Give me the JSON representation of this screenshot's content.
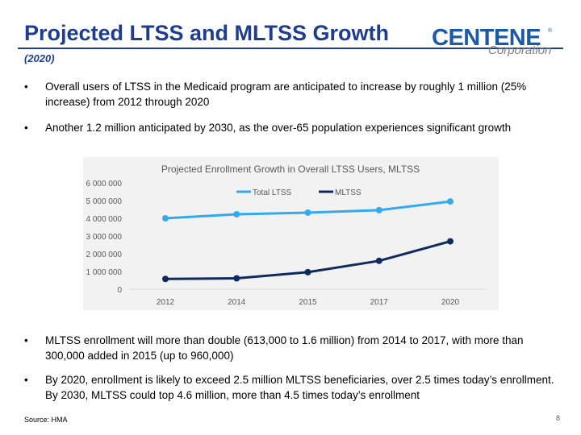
{
  "header": {
    "title": "Projected LTSS and MLTSS Growth",
    "subtitle": "(2020)",
    "logo_main": "CENTENE",
    "logo_reg": "®",
    "logo_sub": "Corporation"
  },
  "bullets_top": [
    "Overall users of LTSS in the Medicaid program are anticipated to increase by roughly 1 million (25% increase) from 2012 through 2020",
    "Another 1.2 million anticipated by 2030, as the over-65 population experiences significant growth"
  ],
  "bullets_bottom": [
    "MLTSS enrollment will more than double (613,000 to 1.6 million) from 2014 to 2017, with more than 300,000 added in 2015 (up to 960,000)",
    "By 2020, enrollment is likely to exceed 2.5 million MLTSS beneficiaries, over 2.5 times today’s enrollment. By 2030, MLTSS could top 4.6 million, more than 4.5 times today’s enrollment"
  ],
  "bullet_symbol": "•",
  "footer": {
    "source": "Source: HMA",
    "page_number": "8"
  },
  "chart_data": {
    "type": "line",
    "title": "Projected Enrollment Growth in Overall LTSS Users, MLTSS",
    "categories": [
      "2012",
      "2014",
      "2015",
      "2017",
      "2020"
    ],
    "series": [
      {
        "name": "Total LTSS",
        "color": "#33aaf0",
        "values": [
          4000000,
          4230000,
          4320000,
          4460000,
          4950000
        ]
      },
      {
        "name": "MLTSS",
        "color": "#0f2a5c",
        "values": [
          580000,
          613000,
          960000,
          1600000,
          2700000
        ]
      }
    ],
    "ylim": [
      0,
      6000000
    ],
    "yticks": [
      0,
      1000000,
      2000000,
      3000000,
      4000000,
      5000000,
      6000000
    ],
    "ytick_labels": [
      "0",
      "1 000 000",
      "2 000 000",
      "3 000 000",
      "4 000 000",
      "5 000 000",
      "6 000 000"
    ],
    "legend_position": "top-center",
    "grid": false,
    "xlabel": "",
    "ylabel": ""
  }
}
